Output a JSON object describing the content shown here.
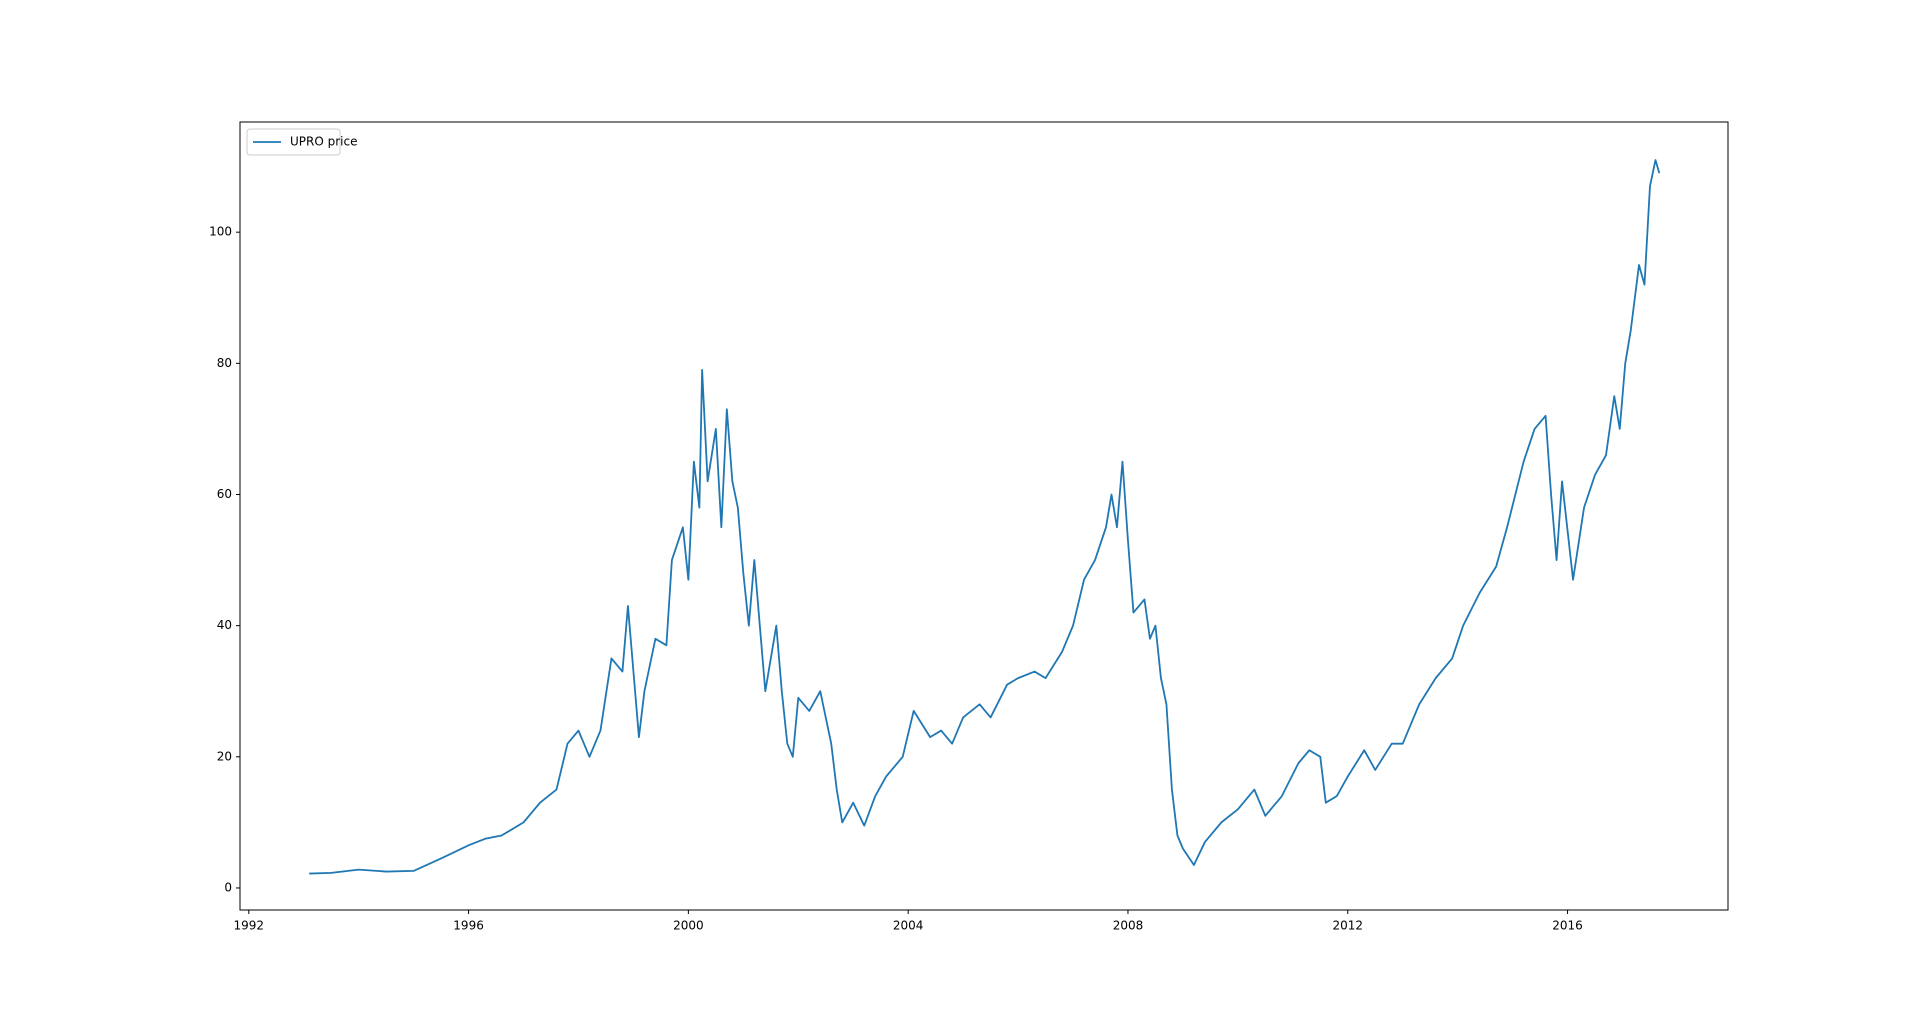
{
  "chart_data": {
    "type": "line",
    "x": [
      1993.1,
      1993.5,
      1994.0,
      1994.5,
      1995.0,
      1995.5,
      1996.0,
      1996.3,
      1996.6,
      1997.0,
      1997.3,
      1997.6,
      1997.8,
      1998.0,
      1998.2,
      1998.4,
      1998.6,
      1998.8,
      1998.9,
      1999.1,
      1999.2,
      1999.4,
      1999.6,
      1999.7,
      1999.9,
      2000.0,
      2000.1,
      2000.2,
      2000.25,
      2000.35,
      2000.5,
      2000.6,
      2000.7,
      2000.8,
      2000.9,
      2001.0,
      2001.1,
      2001.2,
      2001.4,
      2001.6,
      2001.7,
      2001.8,
      2001.9,
      2002.0,
      2002.2,
      2002.4,
      2002.6,
      2002.7,
      2002.8,
      2003.0,
      2003.2,
      2003.4,
      2003.6,
      2003.9,
      2004.1,
      2004.4,
      2004.6,
      2004.8,
      2005.0,
      2005.3,
      2005.5,
      2005.8,
      2006.0,
      2006.3,
      2006.5,
      2006.8,
      2007.0,
      2007.2,
      2007.4,
      2007.6,
      2007.7,
      2007.8,
      2007.9,
      2008.0,
      2008.1,
      2008.3,
      2008.4,
      2008.5,
      2008.6,
      2008.7,
      2008.8,
      2008.9,
      2009.0,
      2009.2,
      2009.4,
      2009.7,
      2010.0,
      2010.3,
      2010.5,
      2010.8,
      2011.1,
      2011.3,
      2011.5,
      2011.6,
      2011.8,
      2012.0,
      2012.3,
      2012.5,
      2012.8,
      2013.0,
      2013.3,
      2013.6,
      2013.9,
      2014.1,
      2014.4,
      2014.7,
      2014.9,
      2015.2,
      2015.4,
      2015.6,
      2015.7,
      2015.8,
      2015.9,
      2016.1,
      2016.3,
      2016.5,
      2016.7,
      2016.85,
      2016.95,
      2017.05,
      2017.15,
      2017.3,
      2017.4,
      2017.5,
      2017.6,
      2017.67
    ],
    "series": [
      {
        "name": "UPRO price",
        "color": "#1f77b4",
        "values": [
          2.2,
          2.3,
          2.8,
          2.5,
          2.6,
          4.5,
          6.5,
          7.5,
          8,
          10,
          13,
          15,
          22,
          24,
          20,
          24,
          35,
          33,
          43,
          23,
          30,
          38,
          37,
          50,
          55,
          47,
          65,
          58,
          79,
          62,
          70,
          55,
          73,
          62,
          58,
          48,
          40,
          50,
          30,
          40,
          30,
          22,
          20,
          29,
          27,
          30,
          22,
          15,
          10,
          13,
          9.5,
          14,
          17,
          20,
          27,
          23,
          24,
          22,
          26,
          28,
          26,
          31,
          32,
          33,
          32,
          36,
          40,
          47,
          50,
          55,
          60,
          55,
          65,
          53,
          42,
          44,
          38,
          40,
          32,
          28,
          15,
          8,
          6,
          3.5,
          7,
          10,
          12,
          15,
          11,
          14,
          19,
          21,
          20,
          13,
          14,
          17,
          21,
          18,
          22,
          22,
          28,
          32,
          35,
          40,
          45,
          49,
          55,
          65,
          70,
          72,
          60,
          50,
          62,
          47,
          58,
          63,
          66,
          75,
          70,
          80,
          85,
          95,
          92,
          107,
          111,
          109
        ]
      }
    ],
    "xlim": [
      1991.84,
      2018.92
    ],
    "xticks": [
      1992,
      1996,
      2000,
      2004,
      2008,
      2012,
      2016
    ],
    "ylim": [
      -3.36,
      116.8
    ],
    "yticks": [
      0,
      20,
      40,
      60,
      80,
      100
    ],
    "legend": "upper left"
  }
}
